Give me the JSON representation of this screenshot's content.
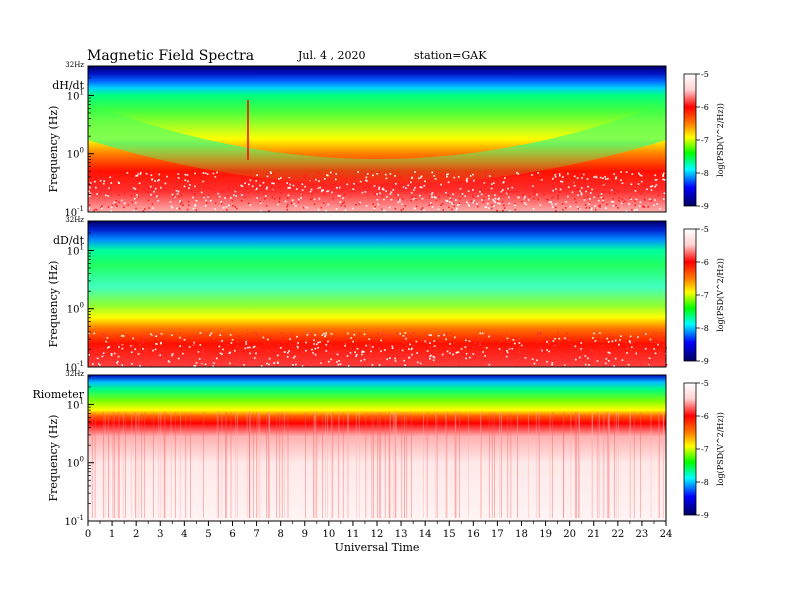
{
  "header": {
    "title": "Magnetic  Field  Spectra",
    "date": "Jul.  4  , 2020",
    "station": "station=GAK"
  },
  "chart_data": [
    {
      "type": "heatmap",
      "panel_label": "dH/dt",
      "ylabel": "Frequency  (Hz)",
      "top_label": "32Hz",
      "y_ticks": [
        {
          "base": "10",
          "exp": "1"
        },
        {
          "base": "10",
          "exp": "0"
        },
        {
          "base": "10",
          "exp": "-1"
        }
      ],
      "yrange_hz": [
        0.1,
        32
      ],
      "colorbar": {
        "ticks": [
          "-5",
          "-6",
          "-7",
          "-8",
          "-9"
        ],
        "label": "log(PSD(V^2/Hz))",
        "range": [
          -9,
          -5
        ]
      }
    },
    {
      "type": "heatmap",
      "panel_label": "dD/dt",
      "ylabel": "Frequency  (Hz)",
      "top_label": "32Hz",
      "y_ticks": [
        {
          "base": "10",
          "exp": "1"
        },
        {
          "base": "10",
          "exp": "0"
        },
        {
          "base": "10",
          "exp": "-1"
        }
      ],
      "yrange_hz": [
        0.1,
        32
      ],
      "colorbar": {
        "ticks": [
          "-5",
          "-6",
          "-7",
          "-8",
          "-9"
        ],
        "label": "log(PSD(V^2/Hz))",
        "range": [
          -9,
          -5
        ]
      }
    },
    {
      "type": "heatmap",
      "panel_label": "Riometer",
      "ylabel": "Frequency  (Hz)",
      "top_label": "32Hz",
      "y_ticks": [
        {
          "base": "10",
          "exp": "1"
        },
        {
          "base": "10",
          "exp": "0"
        },
        {
          "base": "10",
          "exp": "-1"
        }
      ],
      "yrange_hz": [
        0.1,
        32
      ],
      "colorbar": {
        "ticks": [
          "-5",
          "-6",
          "-7",
          "-8",
          "-9"
        ],
        "label": "log(PSD(V^2/Hz))",
        "range": [
          -9,
          -5
        ]
      }
    }
  ],
  "xaxis": {
    "label": "Universal Time",
    "ticks": [
      "0",
      "1",
      "2",
      "3",
      "4",
      "5",
      "6",
      "7",
      "8",
      "9",
      "10",
      "11",
      "12",
      "13",
      "14",
      "15",
      "16",
      "17",
      "18",
      "19",
      "20",
      "21",
      "22",
      "23",
      "24"
    ],
    "range": [
      0,
      24
    ]
  },
  "colors": {
    "dark_blue": "#00007a",
    "blue": "#0000ff",
    "cyan": "#00ffff",
    "green": "#00ff00",
    "yellow": "#ffff00",
    "red": "#ff0000",
    "pink": "#ffd8d8",
    "white": "#ffffff"
  }
}
